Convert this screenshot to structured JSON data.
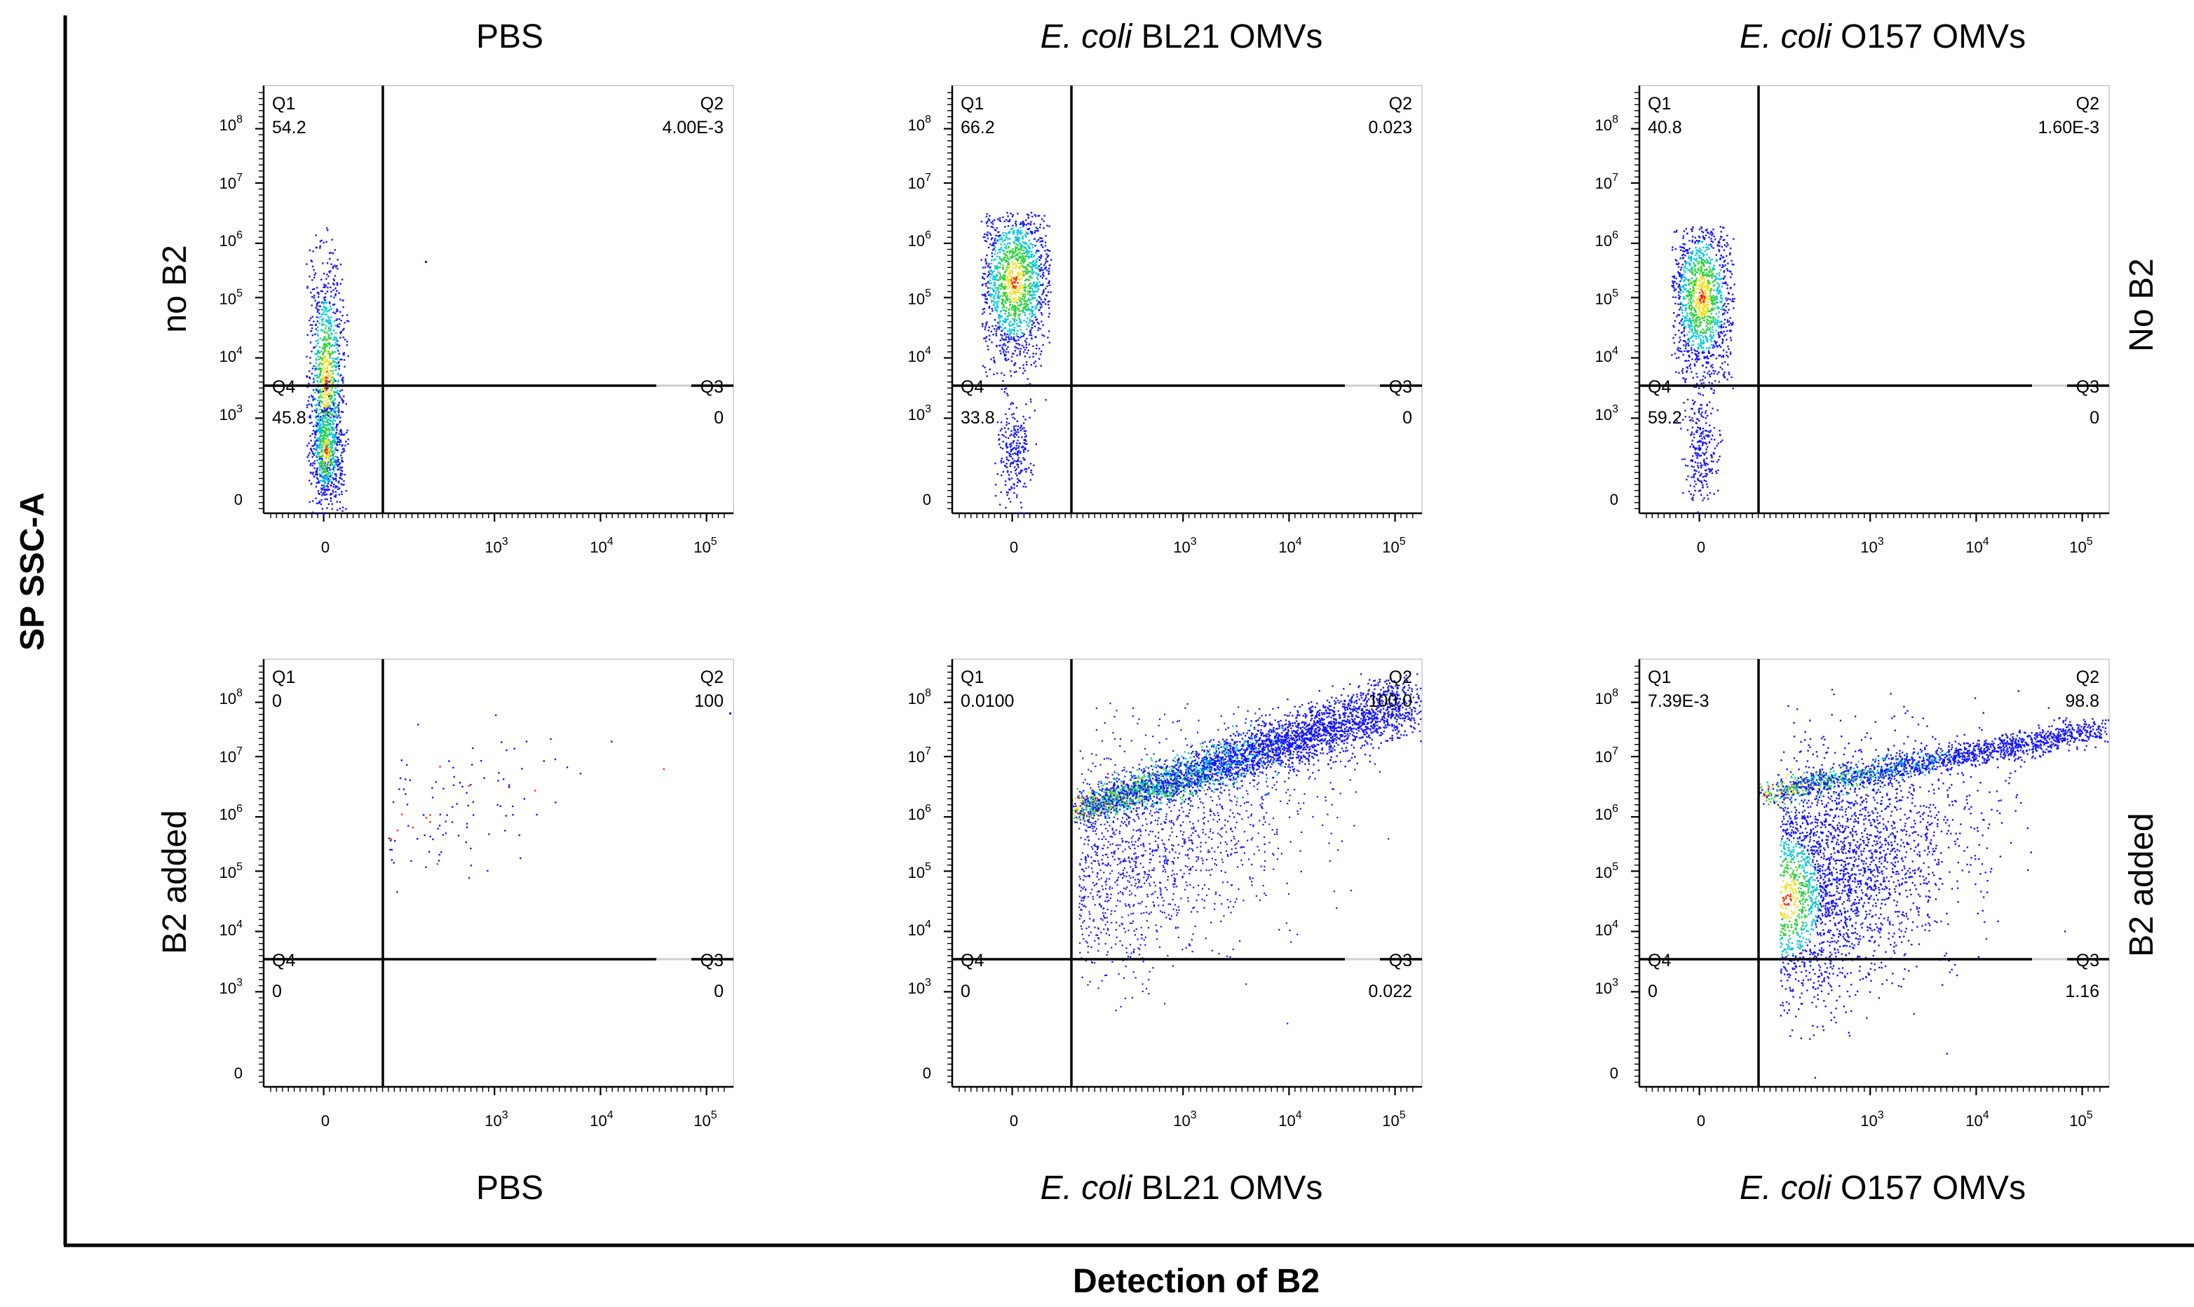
{
  "figure": {
    "y_axis_label": "SP SSC-A",
    "x_axis_label": "Detection of B2"
  },
  "columns": [
    {
      "prefix": "",
      "suffix": "PBS"
    },
    {
      "prefix": "E. coli",
      "suffix": " BL21 OMVs"
    },
    {
      "prefix": "E. coli",
      "suffix": " O157 OMVs"
    }
  ],
  "rows": [
    {
      "left": "no B2",
      "right": "No B2"
    },
    {
      "left": "B2 added",
      "right": "B2 added"
    }
  ],
  "ticks": {
    "y": [
      {
        "label": "0",
        "exp": ""
      },
      {
        "label": "10",
        "exp": "3"
      },
      {
        "label": "10",
        "exp": "4"
      },
      {
        "label": "10",
        "exp": "5"
      },
      {
        "label": "10",
        "exp": "6"
      },
      {
        "label": "10",
        "exp": "7"
      },
      {
        "label": "10",
        "exp": "8"
      }
    ],
    "x": [
      {
        "label": "0",
        "exp": ""
      },
      {
        "label": "10",
        "exp": "3"
      },
      {
        "label": "10",
        "exp": "4"
      },
      {
        "label": "10",
        "exp": "5"
      }
    ]
  },
  "colors": {
    "dots": "#1515ff",
    "dense_low": "#00c8d8",
    "dense_mid": "#2cd23a",
    "dense_high": "#f0e020",
    "dense_peak": "#ff2a00",
    "gate": "#000000"
  },
  "chart_data": [
    {
      "type": "scatter",
      "title": "PBS",
      "condition": "no B2",
      "xlabel": "Detection of B2",
      "ylabel": "SP SSC-A",
      "quadrants": {
        "Q1": "54.2",
        "Q2": "4.00E-3",
        "Q3": "0",
        "Q4": "45.8"
      }
    },
    {
      "type": "scatter",
      "title": "E. coli BL21 OMVs",
      "condition": "no B2",
      "xlabel": "Detection of B2",
      "ylabel": "SP SSC-A",
      "quadrants": {
        "Q1": "66.2",
        "Q2": "0.023",
        "Q3": "0",
        "Q4": "33.8"
      }
    },
    {
      "type": "scatter",
      "title": "E. coli O157 OMVs",
      "condition": "no B2",
      "xlabel": "Detection of B2",
      "ylabel": "SP SSC-A",
      "quadrants": {
        "Q1": "40.8",
        "Q2": "1.60E-3",
        "Q3": "0",
        "Q4": "59.2"
      }
    },
    {
      "type": "scatter",
      "title": "PBS",
      "condition": "B2 added",
      "xlabel": "Detection of B2",
      "ylabel": "SP SSC-A",
      "quadrants": {
        "Q1": "0",
        "Q2": "100",
        "Q3": "0",
        "Q4": "0"
      }
    },
    {
      "type": "scatter",
      "title": "E. coli BL21 OMVs",
      "condition": "B2 added",
      "xlabel": "Detection of B2",
      "ylabel": "SP SSC-A",
      "quadrants": {
        "Q1": "0.0100",
        "Q2": "100.0",
        "Q3": "0.022",
        "Q4": "0"
      }
    },
    {
      "type": "scatter",
      "title": "E. coli O157 OMVs",
      "condition": "B2 added",
      "xlabel": "Detection of B2",
      "ylabel": "SP SSC-A",
      "quadrants": {
        "Q1": "7.39E-3",
        "Q2": "98.8",
        "Q3": "1.16",
        "Q4": "0"
      }
    }
  ]
}
